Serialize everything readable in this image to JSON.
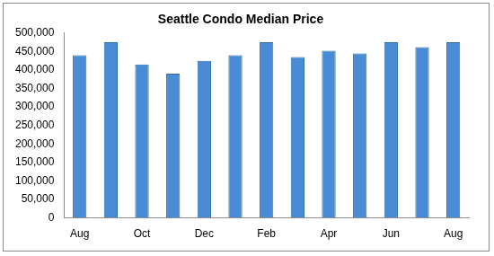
{
  "chart_data": {
    "type": "bar",
    "title": "Seattle Condo Median Price",
    "categories": [
      "Aug",
      null,
      "Oct",
      null,
      "Dec",
      null,
      "Feb",
      null,
      "Apr",
      null,
      "Jun",
      null,
      "Aug"
    ],
    "values": [
      440000,
      475000,
      415000,
      390000,
      425000,
      440000,
      475000,
      435000,
      452000,
      445000,
      475000,
      462000,
      475000
    ],
    "color": "#4a8bd6",
    "ylim": [
      0,
      500000
    ],
    "yticks": [
      0,
      {
        "value": 50000,
        "label": "50,000"
      },
      {
        "value": 100000,
        "label": "100,000"
      },
      {
        "value": 150000,
        "label": "150,000"
      },
      {
        "value": 200000,
        "label": "200,000"
      },
      {
        "value": 250000,
        "label": "250,000"
      },
      {
        "value": 300000,
        "label": "300,000"
      },
      {
        "value": 350000,
        "label": "350,000"
      },
      {
        "value": 400000,
        "label": "400,000"
      },
      {
        "value": 450000,
        "label": "450,000"
      },
      {
        "value": 500000,
        "label": "500,000"
      }
    ],
    "grid": false
  }
}
